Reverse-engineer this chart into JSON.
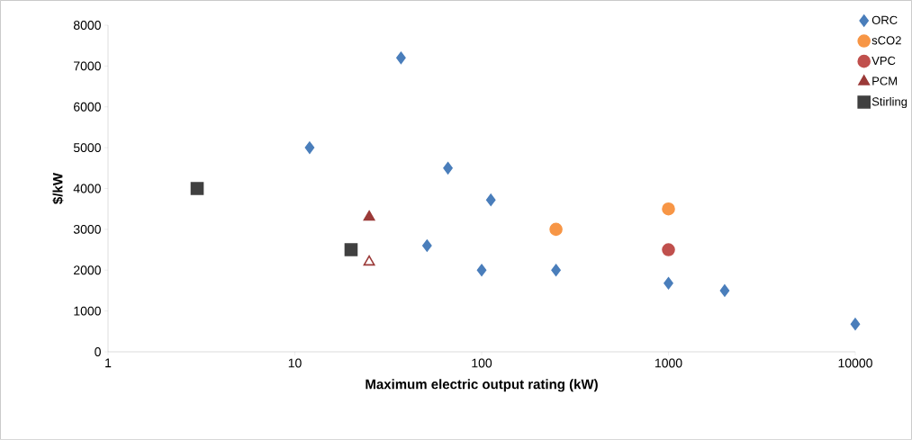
{
  "chart_data": {
    "type": "scatter",
    "xlabel": "Maximum electric output rating (kW)",
    "ylabel": "$/kW",
    "log": "x",
    "xlim": [
      1,
      10000
    ],
    "xticks": [
      1,
      10,
      100,
      1000,
      10000
    ],
    "ylim": [
      0,
      8000
    ],
    "yticks": [
      0,
      1000,
      2000,
      3000,
      4000,
      5000,
      6000,
      7000,
      8000
    ],
    "grid": false,
    "legend": "top right",
    "series": [
      {
        "name": "ORC",
        "color": "#4a7ebb",
        "marker": "diamond",
        "x": [
          12,
          37,
          66,
          112,
          51,
          100,
          250,
          1000,
          2000,
          10000
        ],
        "values": [
          5000,
          7200,
          4500,
          3720,
          2600,
          2000,
          2000,
          1680,
          1500,
          680
        ]
      },
      {
        "name": "sCO2",
        "color": "#f79646",
        "marker": "circle",
        "x": [
          250,
          1000
        ],
        "values": [
          3000,
          3500
        ]
      },
      {
        "name": "VPC",
        "color": "#c0504d",
        "marker": "circle",
        "x": [
          1000
        ],
        "values": [
          2500
        ]
      },
      {
        "name": "PCM",
        "color": "#9b3a38",
        "marker": "triangle",
        "colors": [
          "#9b3a38",
          "#ffffff"
        ],
        "x": [
          25,
          25
        ],
        "values": [
          3300,
          2200
        ]
      },
      {
        "name": "Stirling",
        "color": "#404040",
        "marker": "square",
        "x": [
          3,
          20
        ],
        "values": [
          4000,
          2500
        ]
      }
    ]
  }
}
